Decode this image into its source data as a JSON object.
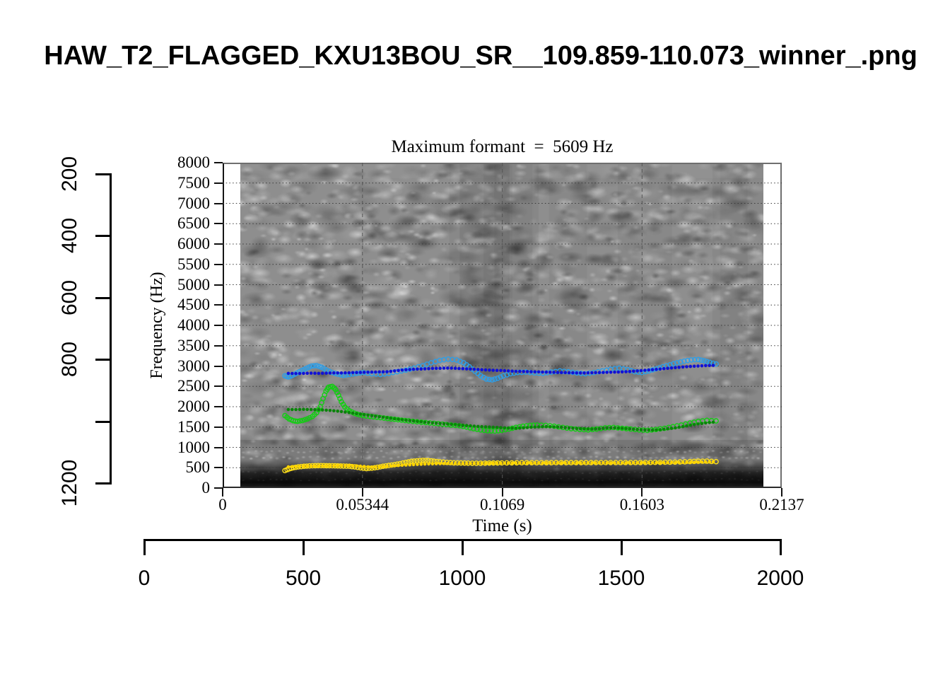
{
  "page": {
    "title": "HAW_T2_FLAGGED_KXU13BOU_SR__109.859-110.073_winner_.png"
  },
  "colors": {
    "f3_measured": "#1111d6",
    "f3_candidate": "#2e9ee7",
    "f2_measured": "#0a840a",
    "f2_candidate": "#12ce12",
    "f1_measured": "#ffd400",
    "f1_candidate": "#ffe11a",
    "grid_h": "#3a3a3a",
    "grid_v": "#555555"
  },
  "outer_axes": {
    "x": {
      "ticks": [
        0,
        500,
        1000,
        1500,
        2000
      ],
      "labels": [
        "0",
        "500",
        "1000",
        "1500",
        "2000"
      ]
    },
    "y": {
      "ticks": [
        200,
        400,
        600,
        800,
        1000,
        1200
      ],
      "labels": [
        "200",
        "400",
        "600",
        "800",
        "",
        "1200"
      ]
    }
  },
  "chart_data": {
    "type": "scatter",
    "title": "Maximum formant  =  5609 Hz",
    "maximum_formant_hz": 5609,
    "xlabel": "Time (s)",
    "ylabel": "Frequency (Hz)",
    "xlim": [
      0,
      0.2137
    ],
    "ylim": [
      0,
      8000
    ],
    "x_ticks": [
      {
        "v": 0,
        "label": "0"
      },
      {
        "v": 0.05344,
        "label": "0.05344"
      },
      {
        "v": 0.1069,
        "label": "0.1069"
      },
      {
        "v": 0.1603,
        "label": "0.1603"
      },
      {
        "v": 0.2137,
        "label": "0.2137"
      }
    ],
    "y_ticks": [
      0,
      500,
      1000,
      1500,
      2000,
      2500,
      3000,
      3500,
      4000,
      4500,
      5000,
      5500,
      6000,
      6500,
      7000,
      7500,
      8000
    ],
    "grid": {
      "h_lines_hz": [
        500,
        1000,
        1500,
        2000,
        2500,
        3000,
        3500,
        4000,
        4500,
        5000,
        5500,
        6000,
        6500,
        7000,
        7500
      ],
      "v_lines_s": [
        0.05344,
        0.1069,
        0.1603
      ]
    },
    "spectrogram_extent_s": [
      0.0068,
      0.2067
    ],
    "series": [
      {
        "name": "F3 candidates",
        "marker": "open-circle",
        "color_key": "f3_candidate",
        "points": [
          [
            0.0238,
            2760
          ],
          [
            0.0251,
            2730
          ],
          [
            0.0267,
            2770
          ],
          [
            0.0284,
            2830
          ],
          [
            0.0303,
            2890
          ],
          [
            0.0322,
            2950
          ],
          [
            0.034,
            3000
          ],
          [
            0.0359,
            3010
          ],
          [
            0.0378,
            2970
          ],
          [
            0.0397,
            2900
          ],
          [
            0.0419,
            2840
          ],
          [
            0.044,
            2800
          ],
          [
            0.0462,
            2770
          ],
          [
            0.0484,
            2790
          ],
          [
            0.0511,
            2820
          ],
          [
            0.0538,
            2840
          ],
          [
            0.057,
            2810
          ],
          [
            0.0603,
            2790
          ],
          [
            0.0635,
            2820
          ],
          [
            0.0667,
            2860
          ],
          [
            0.07,
            2900
          ],
          [
            0.0732,
            2950
          ],
          [
            0.0765,
            3010
          ],
          [
            0.0797,
            3080
          ],
          [
            0.083,
            3140
          ],
          [
            0.0862,
            3170
          ],
          [
            0.0894,
            3150
          ],
          [
            0.0921,
            3080
          ],
          [
            0.0943,
            2980
          ],
          [
            0.0965,
            2870
          ],
          [
            0.0986,
            2760
          ],
          [
            0.1008,
            2680
          ],
          [
            0.103,
            2660
          ],
          [
            0.1051,
            2700
          ],
          [
            0.1073,
            2760
          ],
          [
            0.11,
            2810
          ],
          [
            0.1127,
            2840
          ],
          [
            0.1159,
            2850
          ],
          [
            0.1192,
            2830
          ],
          [
            0.1224,
            2820
          ],
          [
            0.1256,
            2850
          ],
          [
            0.1289,
            2880
          ],
          [
            0.1321,
            2860
          ],
          [
            0.1354,
            2830
          ],
          [
            0.1386,
            2810
          ],
          [
            0.1419,
            2840
          ],
          [
            0.1451,
            2880
          ],
          [
            0.1483,
            2920
          ],
          [
            0.1516,
            2950
          ],
          [
            0.1548,
            2910
          ],
          [
            0.1575,
            2860
          ],
          [
            0.1602,
            2840
          ],
          [
            0.1629,
            2880
          ],
          [
            0.1656,
            2930
          ],
          [
            0.1683,
            2980
          ],
          [
            0.171,
            3030
          ],
          [
            0.1737,
            3080
          ],
          [
            0.1764,
            3120
          ],
          [
            0.1791,
            3150
          ],
          [
            0.1818,
            3160
          ],
          [
            0.184,
            3130
          ],
          [
            0.1862,
            3090
          ],
          [
            0.1886,
            3050
          ]
        ]
      },
      {
        "name": "F2 candidates",
        "marker": "open-circle",
        "color_key": "f2_candidate",
        "points": [
          [
            0.0238,
            1780
          ],
          [
            0.0254,
            1700
          ],
          [
            0.027,
            1655
          ],
          [
            0.0286,
            1640
          ],
          [
            0.0305,
            1660
          ],
          [
            0.0324,
            1700
          ],
          [
            0.0343,
            1760
          ],
          [
            0.0359,
            1850
          ],
          [
            0.0373,
            2000
          ],
          [
            0.0384,
            2200
          ],
          [
            0.0395,
            2380
          ],
          [
            0.0405,
            2480
          ],
          [
            0.0419,
            2500
          ],
          [
            0.0432,
            2420
          ],
          [
            0.0443,
            2280
          ],
          [
            0.0454,
            2120
          ],
          [
            0.0467,
            1990
          ],
          [
            0.0484,
            1900
          ],
          [
            0.0503,
            1840
          ],
          [
            0.0524,
            1800
          ],
          [
            0.0549,
            1770
          ],
          [
            0.0576,
            1750
          ],
          [
            0.0603,
            1730
          ],
          [
            0.063,
            1710
          ],
          [
            0.0657,
            1690
          ],
          [
            0.0684,
            1670
          ],
          [
            0.0711,
            1650
          ],
          [
            0.0743,
            1630
          ],
          [
            0.0776,
            1610
          ],
          [
            0.0808,
            1590
          ],
          [
            0.084,
            1570
          ],
          [
            0.0873,
            1550
          ],
          [
            0.0905,
            1530
          ],
          [
            0.0932,
            1500
          ],
          [
            0.0959,
            1460
          ],
          [
            0.0986,
            1430
          ],
          [
            0.1013,
            1410
          ],
          [
            0.104,
            1400
          ],
          [
            0.1067,
            1420
          ],
          [
            0.1094,
            1450
          ],
          [
            0.1121,
            1490
          ],
          [
            0.1148,
            1520
          ],
          [
            0.1175,
            1540
          ],
          [
            0.1202,
            1550
          ],
          [
            0.1235,
            1540
          ],
          [
            0.1267,
            1520
          ],
          [
            0.13,
            1490
          ],
          [
            0.1332,
            1460
          ],
          [
            0.1365,
            1440
          ],
          [
            0.1397,
            1430
          ],
          [
            0.1429,
            1450
          ],
          [
            0.1462,
            1480
          ],
          [
            0.1494,
            1490
          ],
          [
            0.1527,
            1470
          ],
          [
            0.1559,
            1450
          ],
          [
            0.1592,
            1430
          ],
          [
            0.1624,
            1420
          ],
          [
            0.1656,
            1440
          ],
          [
            0.1689,
            1470
          ],
          [
            0.1721,
            1510
          ],
          [
            0.1753,
            1550
          ],
          [
            0.1786,
            1600
          ],
          [
            0.1818,
            1640
          ],
          [
            0.1851,
            1665
          ],
          [
            0.1886,
            1650
          ]
        ]
      },
      {
        "name": "F1 candidates",
        "marker": "open-circle",
        "color_key": "f1_candidate",
        "points": [
          [
            0.0238,
            430
          ],
          [
            0.0254,
            470
          ],
          [
            0.027,
            500
          ],
          [
            0.0289,
            520
          ],
          [
            0.0311,
            535
          ],
          [
            0.0332,
            545
          ],
          [
            0.0354,
            550
          ],
          [
            0.0376,
            552
          ],
          [
            0.0397,
            550
          ],
          [
            0.0419,
            548
          ],
          [
            0.044,
            545
          ],
          [
            0.0462,
            540
          ],
          [
            0.0484,
            535
          ],
          [
            0.0505,
            520
          ],
          [
            0.0527,
            495
          ],
          [
            0.0549,
            480
          ],
          [
            0.057,
            490
          ],
          [
            0.0592,
            510
          ],
          [
            0.0613,
            535
          ],
          [
            0.0635,
            555
          ],
          [
            0.0657,
            575
          ],
          [
            0.0678,
            600
          ],
          [
            0.07,
            630
          ],
          [
            0.0721,
            655
          ],
          [
            0.0743,
            670
          ],
          [
            0.0765,
            680
          ],
          [
            0.0786,
            675
          ],
          [
            0.0808,
            660
          ],
          [
            0.083,
            645
          ],
          [
            0.0857,
            630
          ],
          [
            0.0884,
            620
          ],
          [
            0.0911,
            615
          ],
          [
            0.0938,
            612
          ],
          [
            0.097,
            610
          ],
          [
            0.1003,
            612
          ],
          [
            0.1035,
            615
          ],
          [
            0.1067,
            618
          ],
          [
            0.1105,
            620
          ],
          [
            0.1143,
            622
          ],
          [
            0.1181,
            622
          ],
          [
            0.1219,
            623
          ],
          [
            0.1256,
            623
          ],
          [
            0.1294,
            624
          ],
          [
            0.1332,
            624
          ],
          [
            0.137,
            625
          ],
          [
            0.1408,
            625
          ],
          [
            0.1446,
            626
          ],
          [
            0.1483,
            626
          ],
          [
            0.1521,
            627
          ],
          [
            0.1559,
            628
          ],
          [
            0.1597,
            628
          ],
          [
            0.1635,
            630
          ],
          [
            0.1672,
            632
          ],
          [
            0.171,
            636
          ],
          [
            0.1748,
            642
          ],
          [
            0.1786,
            650
          ],
          [
            0.1818,
            660
          ],
          [
            0.1851,
            662
          ],
          [
            0.1886,
            648
          ]
        ]
      },
      {
        "name": "F3 measured",
        "marker": "filled-dot",
        "color_key": "f3_measured",
        "t0": 0.0251,
        "dt": 0.0029,
        "values": [
          2820,
          2815,
          2820,
          2825,
          2820,
          2825,
          2830,
          2830,
          2835,
          2840,
          2845,
          2850,
          2855,
          2860,
          2880,
          2900,
          2915,
          2925,
          2930,
          2940,
          2945,
          2950,
          2945,
          2935,
          2925,
          2915,
          2905,
          2895,
          2890,
          2880,
          2870,
          2865,
          2860,
          2855,
          2850,
          2845,
          2840,
          2835,
          2830,
          2830,
          2835,
          2840,
          2845,
          2850,
          2855,
          2865,
          2880,
          2895,
          2910,
          2925,
          2945,
          2960,
          2975,
          2990,
          3000,
          3010,
          3015
        ]
      },
      {
        "name": "F2 measured",
        "marker": "filled-dot",
        "color_key": "f2_measured",
        "t0": 0.0251,
        "dt": 0.0029,
        "values": [
          1930,
          1930,
          1935,
          1930,
          1925,
          1915,
          1900,
          1880,
          1855,
          1830,
          1805,
          1780,
          1755,
          1730,
          1705,
          1680,
          1660,
          1640,
          1620,
          1605,
          1590,
          1575,
          1560,
          1545,
          1530,
          1515,
          1505,
          1495,
          1485,
          1475,
          1470,
          1480,
          1495,
          1505,
          1510,
          1505,
          1495,
          1480,
          1465,
          1455,
          1450,
          1460,
          1475,
          1480,
          1470,
          1455,
          1440,
          1430,
          1425,
          1435,
          1455,
          1480,
          1510,
          1545,
          1575,
          1600,
          1620
        ]
      },
      {
        "name": "F1 measured",
        "marker": "filled-dot",
        "color_key": "f1_measured",
        "t0": 0.0251,
        "dt": 0.0029,
        "values": [
          520,
          530,
          535,
          540,
          545,
          548,
          550,
          550,
          548,
          545,
          530,
          515,
          520,
          535,
          550,
          560,
          570,
          580,
          590,
          595,
          600,
          603,
          605,
          606,
          607,
          608,
          609,
          610,
          611,
          612,
          613,
          613,
          614,
          614,
          615,
          615,
          615,
          616,
          616,
          616,
          617,
          617,
          617,
          618,
          618,
          618,
          619,
          620,
          621,
          622,
          624,
          627,
          630,
          633,
          636,
          640,
          643
        ]
      }
    ]
  }
}
